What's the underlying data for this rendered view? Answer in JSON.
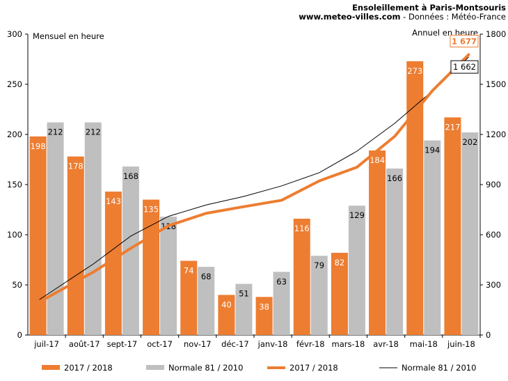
{
  "chart_data": {
    "type": "bar",
    "title": "Ensoleillement à Paris-Montsouris",
    "subtitle_site": "www.meteo-villes.com",
    "subtitle_source": " - Données : Météo-France",
    "ylabel_left": "Mensuel en heure",
    "ylabel_right": "Annuel en heure",
    "categories": [
      "juil-17",
      "août-17",
      "sept-17",
      "oct-17",
      "nov-17",
      "déc-17",
      "janv-18",
      "févr-18",
      "mars-18",
      "avr-18",
      "mai-18",
      "juin-18"
    ],
    "ylim_left": [
      0,
      300
    ],
    "yticks_left": [
      "0",
      "50",
      "100",
      "150",
      "200",
      "250",
      "300"
    ],
    "ylim_right": [
      0,
      1800
    ],
    "yticks_right": [
      "0",
      "300",
      "600",
      "900",
      "1200",
      "1500",
      "1800"
    ],
    "series": [
      {
        "name": "2017 / 2018",
        "kind": "bar",
        "axis": "left",
        "color": "#ed7d31",
        "values": [
          198,
          178,
          143,
          135,
          74,
          40,
          38,
          116,
          82,
          184,
          273,
          217
        ],
        "labels": [
          "198",
          "178",
          "143",
          "135",
          "74",
          "40",
          "38",
          "116",
          "82",
          "184",
          "273",
          "217"
        ]
      },
      {
        "name": "Normale 81 / 2010",
        "kind": "bar",
        "axis": "left",
        "color": "#bfbfbf",
        "values": [
          212,
          212,
          168,
          118,
          68,
          51,
          63,
          79,
          129,
          166,
          194,
          202
        ],
        "labels": [
          "212",
          "212",
          "168",
          "118",
          "68",
          "51",
          "63",
          "79",
          "129",
          "166",
          "194",
          "202"
        ]
      },
      {
        "name": "2017 / 2018",
        "kind": "line",
        "axis": "right",
        "color": "#ed7d31",
        "values": [
          198,
          376,
          519,
          654,
          728,
          768,
          806,
          922,
          1004,
          1188,
          1461,
          1677
        ],
        "end_label": "1 677"
      },
      {
        "name": "Normale 81 / 2010",
        "kind": "line",
        "axis": "right",
        "color": "#000000",
        "values": [
          212,
          424,
          592,
          710,
          778,
          829,
          892,
          971,
          1100,
          1266,
          1460,
          1662
        ],
        "end_label": "1 662"
      }
    ],
    "legend": {
      "position": "bottom",
      "entries": [
        "2017 / 2018",
        "Normale 81 / 2010",
        "2017 / 2018",
        "Normale 81 / 2010"
      ]
    }
  }
}
